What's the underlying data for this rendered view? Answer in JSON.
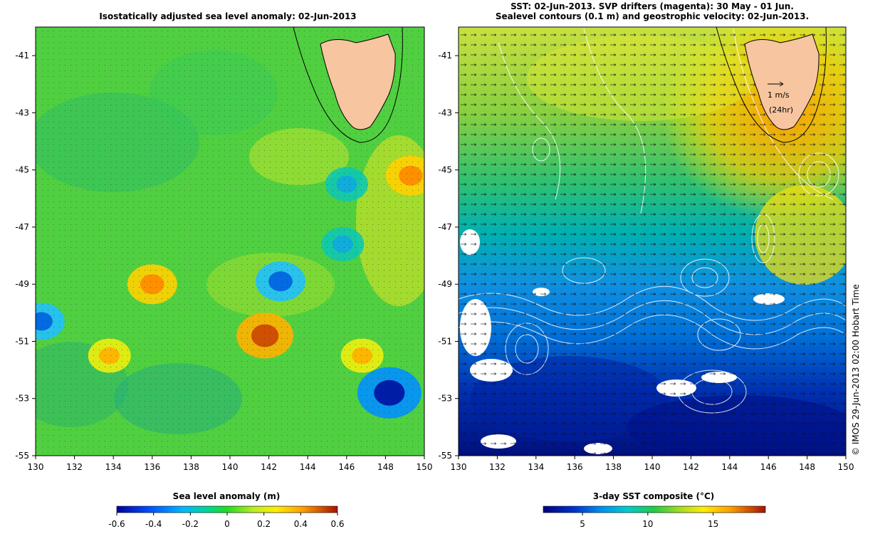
{
  "chart_data": [
    {
      "type": "heatmap",
      "title": "Isostatically adjusted sea level anomaly: 02-Jun-2013",
      "x_ticks": [
        "130",
        "132",
        "134",
        "136",
        "138",
        "140",
        "142",
        "144",
        "146",
        "148",
        "150"
      ],
      "y_ticks": [
        "-41",
        "-43",
        "-45",
        "-47",
        "-49",
        "-51",
        "-53",
        "-55"
      ],
      "xlim": [
        130,
        150
      ],
      "ylim": [
        -55,
        -40
      ],
      "colorbar": {
        "label": "Sea level anomaly (m)",
        "range": [
          -0.6,
          0.6
        ],
        "ticks": [
          "-0.6",
          "-0.4",
          "-0.2",
          "0",
          "0.2",
          "0.4",
          "0.6"
        ]
      },
      "land_color": "#f7c59f",
      "features": [
        {
          "lon": 136.0,
          "lat": -49.0,
          "value": 0.35
        },
        {
          "lon": 141.8,
          "lat": -50.8,
          "value": 0.45
        },
        {
          "lon": 142.6,
          "lat": -48.9,
          "value": -0.35
        },
        {
          "lon": 148.2,
          "lat": -52.8,
          "value": -0.55
        },
        {
          "lon": 149.3,
          "lat": -45.2,
          "value": 0.35
        },
        {
          "lon": 145.8,
          "lat": -47.6,
          "value": -0.25
        },
        {
          "lon": 130.3,
          "lat": -50.3,
          "value": -0.3
        },
        {
          "lon": 133.8,
          "lat": -51.5,
          "value": 0.25
        },
        {
          "lon": 146.8,
          "lat": -51.5,
          "value": 0.25
        },
        {
          "lon": 146.0,
          "lat": -45.5,
          "value": -0.25
        }
      ]
    },
    {
      "type": "heatmap",
      "title_line1": "SST: 02-Jun-2013. SVP drifters (magenta): 30 May - 01 Jun.",
      "title_line2": "Sealevel contours (0.1 m) and geostrophic velocity: 02-Jun-2013.",
      "x_ticks": [
        "130",
        "132",
        "134",
        "136",
        "138",
        "140",
        "142",
        "144",
        "146",
        "148",
        "150"
      ],
      "y_ticks": [
        "-41",
        "-43",
        "-45",
        "-47",
        "-49",
        "-51",
        "-53",
        "-55"
      ],
      "xlim": [
        130,
        150
      ],
      "ylim": [
        -55,
        -40
      ],
      "colorbar": {
        "label": "3-day SST composite (°C)",
        "range": [
          2,
          19
        ],
        "ticks": [
          "5",
          "10",
          "15"
        ],
        "tick_values": [
          5,
          10,
          15
        ]
      },
      "scale_arrow": {
        "line1": "1 m/s",
        "line2": "(24hr)"
      },
      "credit": "© IMOS 29-Jun-2013 02:00 Hobart Time"
    }
  ]
}
